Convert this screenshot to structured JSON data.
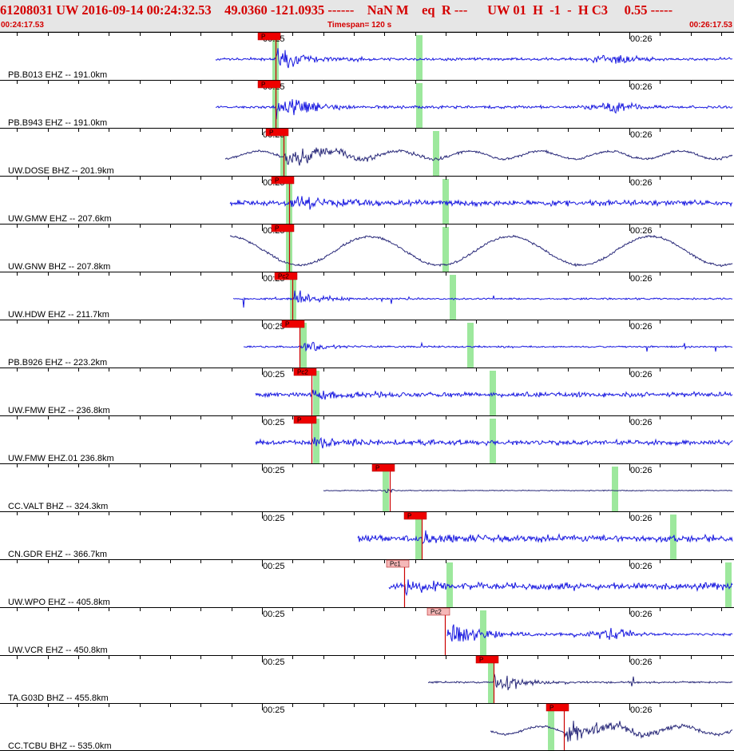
{
  "header": {
    "title_line": "61208031 UW 2016-09-14 00:24:32.53    49.0360 -121.0935 ------    NaN M    eq  R ---      UW 01  H  -1  -  H C3     0.55 -----",
    "start_time": "00:24:17.53",
    "timespan": "Timespan= 120 s",
    "end_time": "00:26:17.53"
  },
  "time_marks": [
    "00:25",
    "00:26"
  ],
  "colors": {
    "waveform_primary": "#1a1ae0",
    "waveform_broadband": "#2a2a7a",
    "pick_flag": "#ee0000",
    "pick_flag_light": "#f5b8b8",
    "pick_line": "#cc0000",
    "predicted_marker": "#9de89d",
    "divider": "#000000"
  },
  "traces": [
    {
      "label": "PB.B013 EHZ -- 191.0km",
      "pick": "P",
      "pick_style": "solid",
      "color": "primary",
      "start": 270,
      "arrival": 345,
      "amp": 0.35,
      "style": "burst",
      "green": [
        345,
        525
      ]
    },
    {
      "label": "PB.B943 EHZ -- 191.0km",
      "pick": "P",
      "pick_style": "solid",
      "color": "primary",
      "start": 270,
      "arrival": 345,
      "amp": 0.4,
      "style": "burst",
      "green": [
        345,
        525
      ]
    },
    {
      "label": "UW.DOSE BHZ -- 201.9km",
      "pick": "P",
      "pick_style": "solid",
      "color": "broadband",
      "start": 282,
      "arrival": 355,
      "amp": 0.45,
      "style": "wavy",
      "green": [
        355,
        546
      ]
    },
    {
      "label": "UW.GMW EHZ -- 207.6km",
      "pick": "P",
      "pick_style": "solid",
      "color": "primary",
      "start": 288,
      "arrival": 362,
      "amp": 0.4,
      "style": "noisy",
      "green": [
        362,
        558
      ]
    },
    {
      "label": "UW.GNW BHZ -- 207.8km",
      "pick": "P",
      "pick_style": "solid",
      "color": "broadband",
      "start": 288,
      "arrival": 362,
      "amp": 0.9,
      "style": "long",
      "green": [
        362,
        558
      ]
    },
    {
      "label": "UW.HDW EHZ -- 211.7km",
      "pick": "Pc2",
      "pick_style": "solid",
      "color": "primary",
      "start": 292,
      "arrival": 366,
      "amp": 0.35,
      "style": "spiky",
      "green": [
        367,
        567
      ]
    },
    {
      "label": "PB.B926 EHZ -- 223.2km",
      "pick": "P",
      "pick_style": "solid",
      "color": "primary",
      "start": 305,
      "arrival": 375,
      "amp": 0.3,
      "style": "spiky",
      "green": [
        380,
        589
      ]
    },
    {
      "label": "UW.FMW EHZ -- 236.8km",
      "pick": "Pc2",
      "pick_style": "solid",
      "color": "primary",
      "start": 320,
      "arrival": 390,
      "amp": 0.35,
      "style": "noisy",
      "green": [
        396,
        617
      ]
    },
    {
      "label": "UW.FMW EHZ.01 236.8km",
      "pick": "P",
      "pick_style": "solid",
      "color": "primary",
      "start": 320,
      "arrival": 390,
      "amp": 0.35,
      "style": "noisy",
      "green": [
        396,
        617
      ]
    },
    {
      "label": "CC.VALT BHZ -- 324.3km",
      "pick": "P",
      "pick_style": "solid",
      "color": "broadband",
      "start": 405,
      "arrival": 488,
      "amp": 0.1,
      "style": "flat",
      "green": [
        483,
        770
      ]
    },
    {
      "label": "CN.GDR EHZ -- 366.7km",
      "pick": "P",
      "pick_style": "solid",
      "color": "primary",
      "start": 448,
      "arrival": 528,
      "amp": 0.45,
      "style": "noisy",
      "green": [
        524,
        843
      ]
    },
    {
      "label": "UW.WPO EHZ -- 405.8km",
      "pick": "Pc1",
      "pick_style": "light",
      "color": "primary",
      "start": 487,
      "arrival": 506,
      "amp": 0.5,
      "style": "noisy",
      "green": [
        563,
        912
      ]
    },
    {
      "label": "UW.VCR EHZ -- 450.8km",
      "pick": "Pc2",
      "pick_style": "light",
      "color": "primary",
      "start": 560,
      "arrival": 557,
      "amp": 0.45,
      "style": "burst",
      "green": [
        605
      ]
    },
    {
      "label": "TA.G03D BHZ -- 455.8km",
      "pick": "P",
      "pick_style": "solid",
      "color": "broadband",
      "start": 536,
      "arrival": 618,
      "amp": 0.45,
      "style": "spiky",
      "green": [
        615
      ]
    },
    {
      "label": "CC.TCBU BHZ -- 535.0km",
      "pick": "P",
      "pick_style": "solid",
      "color": "broadband",
      "start": 614,
      "arrival": 706,
      "amp": 0.6,
      "style": "wavy",
      "green": [
        690
      ]
    }
  ]
}
